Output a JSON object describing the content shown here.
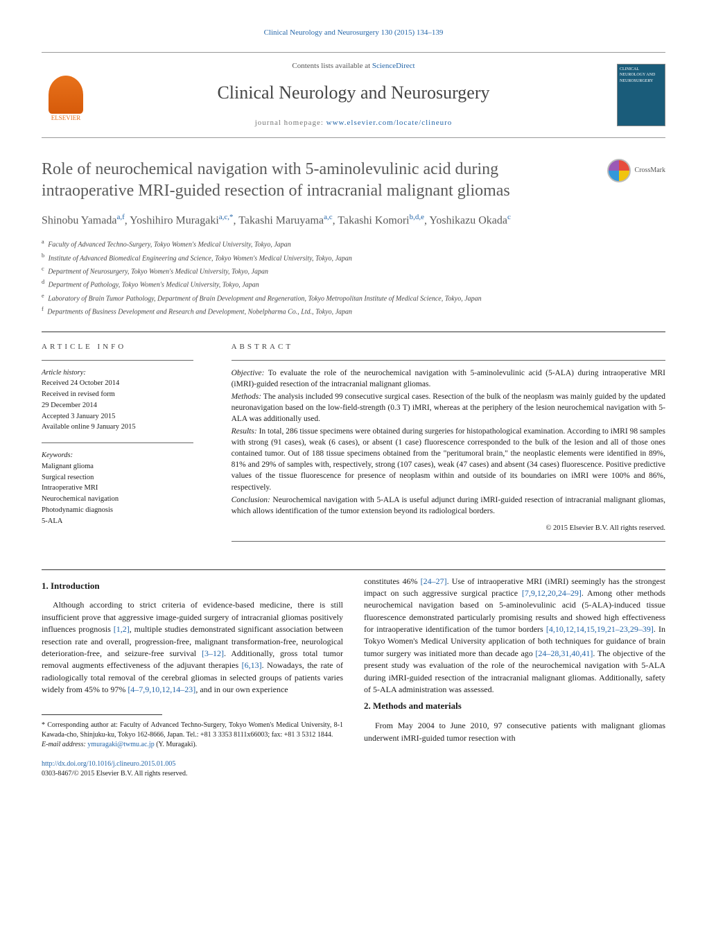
{
  "top_citation": "Clinical Neurology and Neurosurgery 130 (2015) 134–139",
  "header": {
    "contents_prefix": "Contents lists available at ",
    "contents_link": "ScienceDirect",
    "journal_name": "Clinical Neurology and Neurosurgery",
    "homepage_prefix": "journal homepage: ",
    "homepage_url": "www.elsevier.com/locate/clineuro",
    "publisher_label": "ELSEVIER",
    "cover_text": "CLINICAL NEUROLOGY AND NEUROSURGERY"
  },
  "crossmark_label": "CrossMark",
  "title": "Role of neurochemical navigation with 5-aminolevulinic acid during intraoperative MRI-guided resection of intracranial malignant gliomas",
  "authors_html": "Shinobu Yamada<sup>a,f</sup>, Yoshihiro Muragaki<sup>a,c,*</sup>, Takashi Maruyama<sup>a,c</sup>, Takashi Komori<sup>b,d,e</sup>, Yoshikazu Okada<sup>c</sup>",
  "affiliations": [
    {
      "key": "a",
      "text": "Faculty of Advanced Techno-Surgery, Tokyo Women's Medical University, Tokyo, Japan"
    },
    {
      "key": "b",
      "text": "Institute of Advanced Biomedical Engineering and Science, Tokyo Women's Medical University, Tokyo, Japan"
    },
    {
      "key": "c",
      "text": "Department of Neurosurgery, Tokyo Women's Medical University, Tokyo, Japan"
    },
    {
      "key": "d",
      "text": "Department of Pathology, Tokyo Women's Medical University, Tokyo, Japan"
    },
    {
      "key": "e",
      "text": "Laboratory of Brain Tumor Pathology, Department of Brain Development and Regeneration, Tokyo Metropolitan Institute of Medical Science, Tokyo, Japan"
    },
    {
      "key": "f",
      "text": "Departments of Business Development and Research and Development, Nobelpharma Co., Ltd., Tokyo, Japan"
    }
  ],
  "article_info": {
    "heading": "ARTICLE INFO",
    "history_label": "Article history:",
    "history": [
      "Received 24 October 2014",
      "Received in revised form",
      "29 December 2014",
      "Accepted 3 January 2015",
      "Available online 9 January 2015"
    ],
    "keywords_label": "Keywords:",
    "keywords": [
      "Malignant glioma",
      "Surgical resection",
      "Intraoperative MRI",
      "Neurochemical navigation",
      "Photodynamic diagnosis",
      "5-ALA"
    ]
  },
  "abstract": {
    "heading": "ABSTRACT",
    "objective_label": "Objective:",
    "objective": "To evaluate the role of the neurochemical navigation with 5-aminolevulinic acid (5-ALA) during intraoperative MRI (iMRI)-guided resection of the intracranial malignant gliomas.",
    "methods_label": "Methods:",
    "methods": "The analysis included 99 consecutive surgical cases. Resection of the bulk of the neoplasm was mainly guided by the updated neuronavigation based on the low-field-strength (0.3 T) iMRI, whereas at the periphery of the lesion neurochemical navigation with 5-ALA was additionally used.",
    "results_label": "Results:",
    "results": "In total, 286 tissue specimens were obtained during surgeries for histopathological examination. According to iMRI 98 samples with strong (91 cases), weak (6 cases), or absent (1 case) fluorescence corresponded to the bulk of the lesion and all of those ones contained tumor. Out of 188 tissue specimens obtained from the \"peritumoral brain,\" the neoplastic elements were identified in 89%, 81% and 29% of samples with, respectively, strong (107 cases), weak (47 cases) and absent (34 cases) fluorescence. Positive predictive values of the tissue fluorescence for presence of neoplasm within and outside of its boundaries on iMRI were 100% and 86%, respectively.",
    "conclusion_label": "Conclusion:",
    "conclusion": "Neurochemical navigation with 5-ALA is useful adjunct during iMRI-guided resection of intracranial malignant gliomas, which allows identification of the tumor extension beyond its radiological borders.",
    "copyright": "© 2015 Elsevier B.V. All rights reserved."
  },
  "body": {
    "intro_heading": "1. Introduction",
    "intro_p1_a": "Although according to strict criteria of evidence-based medicine, there is still insufficient prove that aggressive image-guided surgery of intracranial gliomas positively influences prognosis ",
    "intro_ref1": "[1,2]",
    "intro_p1_b": ", multiple studies demonstrated significant association between resection rate and overall, progression-free, malignant transformation-free, neurological deterioration-free, and seizure-free survival ",
    "intro_ref2": "[3–12]",
    "intro_p1_c": ". Additionally, gross total tumor removal augments effectiveness of the adjuvant therapies ",
    "intro_ref3": "[6,13]",
    "intro_p1_d": ". Nowadays, the rate of radiologically total removal of the cerebral gliomas in selected groups of patients varies widely from 45% to 97% ",
    "intro_ref4": "[4–7,9,10,12,14–23]",
    "intro_p1_e": ", and in our own experience",
    "intro_p2_a": "constitutes 46% ",
    "intro_ref5": "[24–27]",
    "intro_p2_b": ". Use of intraoperative MRI (iMRI) seemingly has the strongest impact on such aggressive surgical practice ",
    "intro_ref6": "[7,9,12,20,24–29]",
    "intro_p2_c": ". Among other methods neurochemical navigation based on 5-aminolevulinic acid (5-ALA)-induced tissue fluorescence demonstrated particularly promising results and showed high effectiveness for intraoperative identification of the tumor borders ",
    "intro_ref7": "[4,10,12,14,15,19,21–23,29–39]",
    "intro_p2_d": ". In Tokyo Women's Medical University application of both techniques for guidance of brain tumor surgery was initiated more than decade ago ",
    "intro_ref8": "[24–28,31,40,41]",
    "intro_p2_e": ". The objective of the present study was evaluation of the role of the neurochemical navigation with 5-ALA during iMRI-guided resection of the intracranial malignant gliomas. Additionally, safety of 5-ALA administration was assessed.",
    "methods_heading": "2. Methods and materials",
    "methods_p1": "From May 2004 to June 2010, 97 consecutive patients with malignant gliomas underwent iMRI-guided tumor resection with"
  },
  "footnotes": {
    "corr_marker": "*",
    "corr_text": "Corresponding author at: Faculty of Advanced Techno-Surgery, Tokyo Women's Medical University, 8-1 Kawada-cho, Shinjuku-ku, Tokyo 162-8666, Japan. Tel.: +81 3 3353 8111x66003; fax: +81 3 5312 1844.",
    "email_label": "E-mail address:",
    "email": "ymuragaki@twmu.ac.jp",
    "email_suffix": "(Y. Muragaki)."
  },
  "doi": {
    "url": "http://dx.doi.org/10.1016/j.clineuro.2015.01.005",
    "issn_line": "0303-8467/© 2015 Elsevier B.V. All rights reserved."
  },
  "colors": {
    "link": "#2365a8",
    "text": "#1a1a1a",
    "heading_gray": "#5a5a5a",
    "elsevier_orange": "#e8721b"
  }
}
